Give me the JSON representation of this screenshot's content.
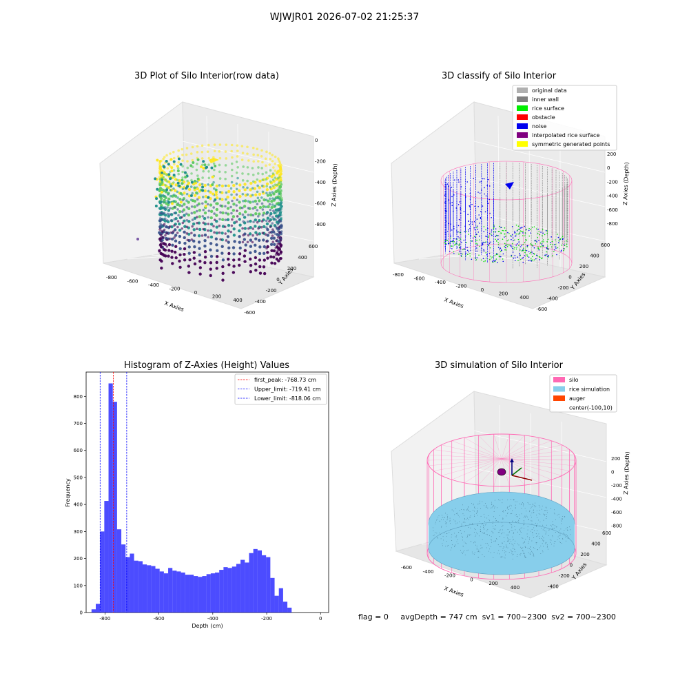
{
  "suptitle": "WJWJR01 2026-07-02 21:25:37",
  "panels": {
    "raw": {
      "title": "3D Plot of Silo Interior(row data)",
      "xlabel": "X Axies",
      "ylabel": "Y Axies",
      "zlabel": "Z Axies (Depth)",
      "xticks": [
        "-800",
        "-600",
        "-400",
        "-200",
        "0",
        "200",
        "400"
      ],
      "yticks": [
        "600",
        "400",
        "200",
        "0",
        "-200",
        "-400",
        "-600"
      ],
      "zticks": [
        "0",
        "-200",
        "-400",
        "-600",
        "-800"
      ]
    },
    "classify": {
      "title": "3D classify of Silo Interior",
      "xlabel": "X Axies",
      "ylabel": "Y Axies",
      "zlabel": "Z Axies (Depth)",
      "xticks": [
        "-800",
        "-600",
        "-400",
        "-200",
        "0",
        "200",
        "400"
      ],
      "yticks": [
        "600",
        "400",
        "200",
        "0",
        "-200",
        "-400",
        "-600"
      ],
      "zticks": [
        "200",
        "0",
        "-200",
        "-400",
        "-600",
        "-800"
      ],
      "legend": [
        {
          "label": "original data",
          "color": "#b0b0b0"
        },
        {
          "label": "inner wall",
          "color": "#808080"
        },
        {
          "label": "rice surface",
          "color": "#00ee00"
        },
        {
          "label": "obstacle",
          "color": "#ff0000"
        },
        {
          "label": "noise",
          "color": "#0000ee"
        },
        {
          "label": "interpolated rice surface",
          "color": "#800080"
        },
        {
          "label": "symmetric generated points",
          "color": "#ffff00"
        }
      ]
    },
    "simulation": {
      "title": "3D simulation of Silo Interior",
      "xlabel": "X Axies",
      "ylabel": "Y Axies",
      "zlabel": "Z Axies (Depth)",
      "xticks": [
        "-600",
        "-400",
        "-200",
        "0",
        "200",
        "400"
      ],
      "yticks": [
        "600",
        "400",
        "200",
        "0",
        "-200",
        "-400"
      ],
      "zticks": [
        "200",
        "0",
        "-200",
        "-400",
        "-600",
        "-800"
      ],
      "legend": [
        {
          "label": "silo",
          "color": "#ff69b4"
        },
        {
          "label": "rice simulation",
          "color": "#87ceeb"
        },
        {
          "label": "auger",
          "color": "#ff4500"
        },
        {
          "label": "center(-100,10)",
          "color": ""
        }
      ]
    }
  },
  "status": {
    "flag": "flag = 0",
    "avg": "avgDepth = 747 cm",
    "sv1": "sv1 = 700~2300",
    "sv2": "sv2 = 700~2300"
  },
  "chart_data": [
    {
      "type": "bar",
      "title": "Histogram of Z-Axies (Height) Values",
      "xlabel": "Depth (cm)",
      "ylabel": "Frequency",
      "xlim": [
        -870,
        30
      ],
      "ylim": [
        0,
        890
      ],
      "xticks": [
        -800,
        -600,
        -400,
        -200,
        0
      ],
      "yticks": [
        0,
        100,
        200,
        300,
        400,
        500,
        600,
        700,
        800
      ],
      "bin_width": 15.8,
      "bin_edges_start": -850,
      "values": [
        12,
        32,
        300,
        413,
        848,
        780,
        308,
        252,
        205,
        218,
        192,
        190,
        178,
        175,
        172,
        162,
        152,
        145,
        165,
        155,
        152,
        148,
        140,
        140,
        135,
        132,
        135,
        142,
        145,
        148,
        158,
        168,
        165,
        170,
        180,
        195,
        185,
        220,
        235,
        230,
        212,
        205,
        128,
        62,
        90,
        40,
        18
      ],
      "color": "#0000ff",
      "vlines": [
        {
          "label": "first_peak: -768.73 cm",
          "x": -768.73,
          "color": "#ff0000"
        },
        {
          "label": "Upper_limit: -719.41 cm",
          "x": -719.41,
          "color": "#0000ff"
        },
        {
          "label": "Lower_limit: -818.06 cm",
          "x": -818.06,
          "color": "#0000ff"
        }
      ]
    }
  ]
}
